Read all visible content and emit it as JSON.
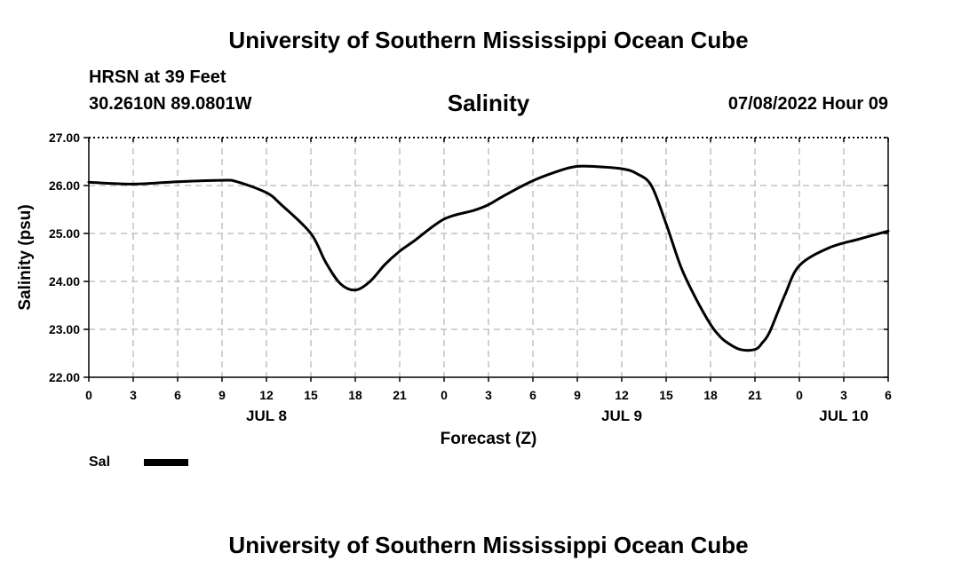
{
  "header": {
    "title": "University of Southern Mississippi Ocean Cube",
    "station": "HRSN at 39 Feet",
    "coordinates": "30.2610N  89.0801W",
    "parameter": "Salinity",
    "timestamp": "07/08/2022 Hour 09"
  },
  "footer": {
    "title": "University of Southern Mississippi Ocean Cube"
  },
  "chart_data": {
    "type": "line",
    "title": "Salinity",
    "xlabel": "Forecast (Z)",
    "ylabel": "Salinity (psu)",
    "ylim": [
      22.0,
      27.0
    ],
    "y_ticks": [
      "22.00",
      "23.00",
      "24.00",
      "25.00",
      "26.00",
      "27.00"
    ],
    "x_ticks": [
      "0",
      "3",
      "6",
      "9",
      "12",
      "15",
      "18",
      "21",
      "0",
      "3",
      "6",
      "9",
      "12",
      "15",
      "18",
      "21",
      "0",
      "3",
      "6"
    ],
    "x_day_labels": [
      {
        "label": "JUL 8",
        "hour": 12
      },
      {
        "label": "JUL 9",
        "hour": 36
      },
      {
        "label": "JUL 10",
        "hour": 51
      }
    ],
    "grid": true,
    "legend": {
      "placement": "bottom-left",
      "entries": [
        {
          "name": "Sal",
          "color": "#000000"
        }
      ]
    },
    "series": [
      {
        "name": "Sal",
        "color": "#000000",
        "x": [
          0,
          3,
          6,
          9,
          10,
          12,
          13,
          15,
          16,
          17,
          18,
          19,
          20,
          21,
          22,
          24,
          26,
          27,
          28,
          30,
          32,
          33,
          34,
          36,
          37,
          38,
          39,
          40,
          41,
          42,
          42.5,
          43,
          44,
          45,
          45.5,
          46,
          47,
          48,
          50,
          52,
          54
        ],
        "values": [
          26.07,
          26.03,
          26.08,
          26.11,
          26.08,
          25.85,
          25.6,
          25.0,
          24.4,
          23.95,
          23.82,
          24.0,
          24.35,
          24.63,
          24.85,
          25.3,
          25.48,
          25.6,
          25.78,
          26.1,
          26.33,
          26.4,
          26.4,
          26.35,
          26.25,
          26.0,
          25.2,
          24.3,
          23.65,
          23.1,
          22.9,
          22.75,
          22.58,
          22.58,
          22.72,
          22.95,
          23.7,
          24.33,
          24.7,
          24.88,
          25.05
        ]
      }
    ]
  }
}
